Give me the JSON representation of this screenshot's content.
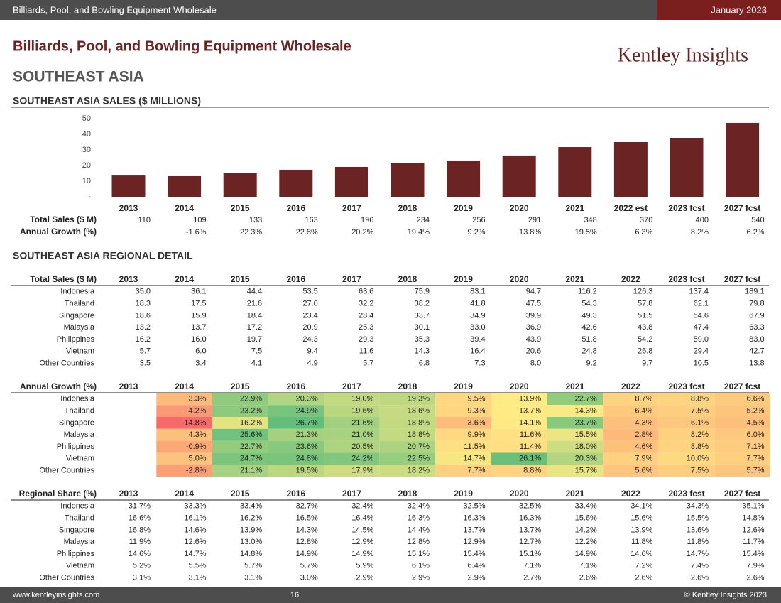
{
  "header": {
    "title": "Billiards, Pool, and Bowling Equipment Wholesale",
    "date": "January 2023"
  },
  "report": {
    "title": "Billiards, Pool, and Bowling Equipment Wholesale",
    "brand": "Kentley Insights",
    "region": "SOUTHEAST ASIA",
    "detail_title": "SOUTHEAST ASIA REGIONAL DETAIL"
  },
  "chart_data": {
    "type": "bar",
    "title": "SOUTHEAST ASIA SALES ($ MILLIONS)",
    "categories": [
      "2013",
      "2014",
      "2015",
      "2016",
      "2017",
      "2018",
      "2019",
      "2020",
      "2021",
      "2022 est",
      "2023 fcst",
      "2027 fcst"
    ],
    "values": [
      13.6,
      13.2,
      15,
      17.3,
      19.1,
      21.8,
      23.2,
      26.4,
      31.8,
      35,
      37.3,
      47.3
    ],
    "color": "#6b2323",
    "ylim": [
      0,
      50
    ],
    "yticks": [
      {
        "value": 0,
        "label": "-"
      },
      10,
      20,
      30,
      40,
      50
    ],
    "grid": false
  },
  "summary": {
    "rows": [
      {
        "label": "Total Sales ($ M)",
        "values": [
          "110",
          "109",
          "133",
          "163",
          "196",
          "234",
          "256",
          "291",
          "348",
          "370",
          "400",
          "540"
        ]
      },
      {
        "label": "Annual Growth (%)",
        "values": [
          null,
          "-1.6%",
          "22.3%",
          "22.8%",
          "20.2%",
          "19.4%",
          "9.2%",
          "13.8%",
          "19.5%",
          "6.3%",
          "8.2%",
          "6.2%"
        ]
      }
    ]
  },
  "tables": [
    {
      "title": "Total Sales ($ M)",
      "heatmap": false,
      "columns": [
        "2013",
        "2014",
        "2015",
        "2016",
        "2017",
        "2018",
        "2019",
        "2020",
        "2021",
        "2022",
        "2023 fcst",
        "2027 fcst"
      ],
      "rows": [
        {
          "label": "Indonesia",
          "values": [
            "35.0",
            "36.1",
            "44.4",
            "53.5",
            "63.6",
            "75.9",
            "83.1",
            "94.7",
            "116.2",
            "126.3",
            "137.4",
            "189.1"
          ]
        },
        {
          "label": "Thailand",
          "values": [
            "18.3",
            "17.5",
            "21.6",
            "27.0",
            "32.2",
            "38.2",
            "41.8",
            "47.5",
            "54.3",
            "57.8",
            "62.1",
            "79.8"
          ]
        },
        {
          "label": "Singapore",
          "values": [
            "18.6",
            "15.9",
            "18.4",
            "23.4",
            "28.4",
            "33.7",
            "34.9",
            "39.9",
            "49.3",
            "51.5",
            "54.6",
            "67.9"
          ]
        },
        {
          "label": "Malaysia",
          "values": [
            "13.2",
            "13.7",
            "17.2",
            "20.9",
            "25.3",
            "30.1",
            "33.0",
            "36.9",
            "42.6",
            "43.8",
            "47.4",
            "63.3"
          ]
        },
        {
          "label": "Philippines",
          "values": [
            "16.2",
            "16.0",
            "19.7",
            "24.3",
            "29.3",
            "35.3",
            "39.4",
            "43.9",
            "51.8",
            "54.2",
            "59.0",
            "83.0"
          ]
        },
        {
          "label": "Vietnam",
          "values": [
            "5.7",
            "6.0",
            "7.5",
            "9.4",
            "11.6",
            "14.3",
            "16.4",
            "20.6",
            "24.8",
            "26.8",
            "29.4",
            "42.7"
          ]
        },
        {
          "label": "Other Countries",
          "values": [
            "3.5",
            "3.4",
            "4.1",
            "4.9",
            "5.7",
            "6.8",
            "7.3",
            "8.0",
            "9.2",
            "9.7",
            "10.5",
            "13.8"
          ]
        }
      ]
    },
    {
      "title": "Annual Growth (%)",
      "heatmap": true,
      "columns": [
        "2013",
        "2014",
        "2015",
        "2016",
        "2017",
        "2018",
        "2019",
        "2020",
        "2021",
        "2022",
        "2023 fcst",
        "2027 fcst"
      ],
      "rows": [
        {
          "label": "Indonesia",
          "values": [
            null,
            "3.3%",
            "22.9%",
            "20.3%",
            "19.0%",
            "19.3%",
            "9.5%",
            "13.9%",
            "22.7%",
            "8.7%",
            "8.8%",
            "6.6%"
          ]
        },
        {
          "label": "Thailand",
          "values": [
            null,
            "-4.2%",
            "23.2%",
            "24.9%",
            "19.6%",
            "18.6%",
            "9.3%",
            "13.7%",
            "14.3%",
            "6.4%",
            "7.5%",
            "5.2%"
          ]
        },
        {
          "label": "Singapore",
          "values": [
            null,
            "-14.8%",
            "16.2%",
            "26.7%",
            "21.6%",
            "18.8%",
            "3.6%",
            "14.1%",
            "23.7%",
            "4.3%",
            "6.1%",
            "4.5%"
          ]
        },
        {
          "label": "Malaysia",
          "values": [
            null,
            "4.3%",
            "25.6%",
            "21.3%",
            "21.0%",
            "18.8%",
            "9.9%",
            "11.6%",
            "15.5%",
            "2.8%",
            "8.2%",
            "6.0%"
          ]
        },
        {
          "label": "Philippines",
          "values": [
            null,
            "-0.9%",
            "22.7%",
            "23.6%",
            "20.5%",
            "20.7%",
            "11.5%",
            "11.4%",
            "18.0%",
            "4.6%",
            "8.8%",
            "7.1%"
          ]
        },
        {
          "label": "Vietnam",
          "values": [
            null,
            "5.0%",
            "24.7%",
            "24.8%",
            "24.2%",
            "22.5%",
            "14.7%",
            "26.1%",
            "20.3%",
            "7.9%",
            "10.0%",
            "7.7%"
          ]
        },
        {
          "label": "Other Countries",
          "values": [
            null,
            "-2.8%",
            "21.1%",
            "19.5%",
            "17.9%",
            "18.2%",
            "7.7%",
            "8.8%",
            "15.7%",
            "5.6%",
            "7.5%",
            "5.7%"
          ]
        }
      ]
    },
    {
      "title": "Regional Share (%)",
      "heatmap": false,
      "columns": [
        "2013",
        "2014",
        "2015",
        "2016",
        "2017",
        "2018",
        "2019",
        "2020",
        "2021",
        "2022",
        "2023 fcst",
        "2027 fcst"
      ],
      "rows": [
        {
          "label": "Indonesia",
          "values": [
            "31.7%",
            "33.3%",
            "33.4%",
            "32.7%",
            "32.4%",
            "32.4%",
            "32.5%",
            "32.5%",
            "33.4%",
            "34.1%",
            "34.3%",
            "35.1%"
          ]
        },
        {
          "label": "Thailand",
          "values": [
            "16.6%",
            "16.1%",
            "16.2%",
            "16.5%",
            "16.4%",
            "16.3%",
            "16.3%",
            "16.3%",
            "15.6%",
            "15.6%",
            "15.5%",
            "14.8%"
          ]
        },
        {
          "label": "Singapore",
          "values": [
            "16.8%",
            "14.6%",
            "13.9%",
            "14.3%",
            "14.5%",
            "14.4%",
            "13.7%",
            "13.7%",
            "14.2%",
            "13.9%",
            "13.6%",
            "12.6%"
          ]
        },
        {
          "label": "Malaysia",
          "values": [
            "11.9%",
            "12.6%",
            "13.0%",
            "12.8%",
            "12.9%",
            "12.8%",
            "12.9%",
            "12.7%",
            "12.2%",
            "11.8%",
            "11.8%",
            "11.7%"
          ]
        },
        {
          "label": "Philippines",
          "values": [
            "14.6%",
            "14.7%",
            "14.8%",
            "14.9%",
            "14.9%",
            "15.1%",
            "15.4%",
            "15.1%",
            "14.9%",
            "14.6%",
            "14.7%",
            "15.4%"
          ]
        },
        {
          "label": "Vietnam",
          "values": [
            "5.2%",
            "5.5%",
            "5.7%",
            "5.7%",
            "5.9%",
            "6.1%",
            "6.4%",
            "7.1%",
            "7.1%",
            "7.2%",
            "7.4%",
            "7.9%"
          ]
        },
        {
          "label": "Other Countries",
          "values": [
            "3.1%",
            "3.1%",
            "3.1%",
            "3.0%",
            "2.9%",
            "2.9%",
            "2.9%",
            "2.7%",
            "2.6%",
            "2.6%",
            "2.6%",
            "2.6%"
          ]
        }
      ]
    }
  ],
  "footer": {
    "website": "www.kentleyinsights.com",
    "page": "16",
    "copyright": "© Kentley Insights 2023"
  }
}
